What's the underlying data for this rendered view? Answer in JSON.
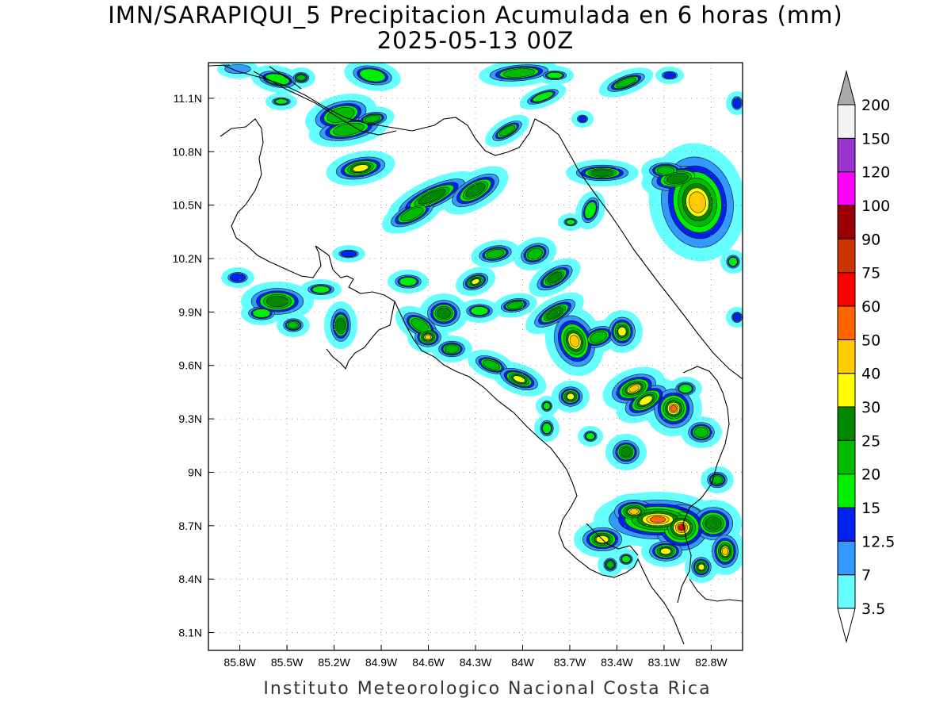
{
  "title": {
    "line1": "IMN/SARAPIQUI_5 Precipitacion Acumulada en 6 horas (mm)",
    "line2": "2025-05-13 00Z"
  },
  "footer": "Instituto Meteorologico Nacional Costa Rica",
  "map": {
    "lon_range": [
      -86.0,
      -82.6
    ],
    "lat_range": [
      8.0,
      11.3
    ],
    "lon_ticks": [
      -85.8,
      -85.5,
      -85.2,
      -84.9,
      -84.6,
      -84.3,
      -84.0,
      -83.7,
      -83.4,
      -83.1,
      -82.8
    ],
    "lon_tick_labels": [
      "85.8W",
      "85.5W",
      "85.2W",
      "84.9W",
      "84.6W",
      "84.3W",
      "84W",
      "83.7W",
      "83.4W",
      "83.1W",
      "82.8W"
    ],
    "lat_ticks": [
      8.1,
      8.4,
      8.7,
      9.0,
      9.3,
      9.6,
      9.9,
      10.2,
      10.5,
      10.8,
      11.1
    ],
    "lat_tick_labels": [
      "8.1N",
      "8.4N",
      "8.7N",
      "9N",
      "9.3N",
      "9.6N",
      "9.9N",
      "10.2N",
      "10.5N",
      "10.8N",
      "11.1N"
    ],
    "grid": true
  },
  "colorbar": {
    "levels": [
      "3.5",
      "7",
      "12.5",
      "15",
      "20",
      "25",
      "30",
      "40",
      "50",
      "60",
      "75",
      "90",
      "100",
      "120",
      "150",
      "200"
    ],
    "colors": [
      "#66ffff",
      "#3399ff",
      "#0022ee",
      "#00ee00",
      "#00bb00",
      "#008800",
      "#ffff00",
      "#ffcc00",
      "#ff6600",
      "#ff0000",
      "#cc3300",
      "#990000",
      "#ff00ff",
      "#9933cc",
      "#f4f4f4",
      "#aaaaaa"
    ],
    "low_arrow_color": "#ffffff",
    "high_arrow_color": "#aaaaaa"
  }
}
